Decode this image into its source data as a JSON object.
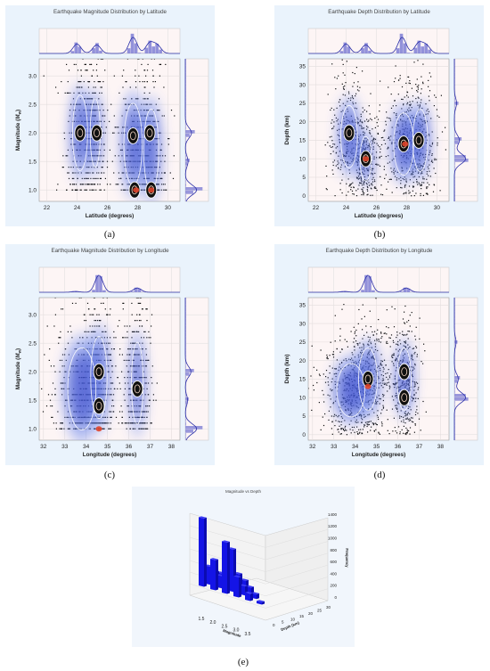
{
  "figure": {
    "captions": [
      "(a)",
      "(b)",
      "(c)",
      "(d)",
      "(e)"
    ]
  },
  "colors": {
    "panel_bg": "#eaf3fc",
    "plot_bg": "#fdf5f5",
    "points": "#111111",
    "kde_fill": "#3b4fcf",
    "kde_glow": "#6f8df2",
    "contour": "#ffffff",
    "hot_core": "#e0452b",
    "marginal": "#6d6fd0",
    "bar3d": "#1414e6"
  },
  "chart_data": [
    {
      "type": "scatter",
      "title": "Earthquake Magnitude Distribution by Latitude",
      "xlabel": "Latitude (degrees)",
      "ylabel": "Magnitude (M_w)",
      "ylabel_main": "Magnitude (",
      "ylabel_sub": "w",
      "xlim": [
        21.5,
        30.8
      ],
      "ylim": [
        0.8,
        3.3
      ],
      "xticks": [
        22,
        24,
        26,
        28,
        30
      ],
      "yticks": [
        1.0,
        1.5,
        2.0,
        2.5,
        3.0
      ],
      "ytick_labels": [
        "1.0",
        "1.5",
        "2.0",
        "2.5",
        "3.0"
      ],
      "clusters": [
        {
          "x": 24.2,
          "y": 2.0,
          "sx": 0.45,
          "sy": 0.55
        },
        {
          "x": 25.2,
          "y": 2.0,
          "sx": 0.3,
          "sy": 0.5
        },
        {
          "x": 27.7,
          "y": 1.8,
          "sx": 0.55,
          "sy": 0.6
        },
        {
          "x": 28.9,
          "y": 1.7,
          "sx": 0.45,
          "sy": 0.6
        }
      ],
      "quantized": true,
      "density_peaks": [
        [
          24.2,
          2.0
        ],
        [
          25.3,
          2.0
        ],
        [
          27.7,
          1.95
        ],
        [
          28.8,
          2.0
        ],
        [
          27.8,
          1.0
        ],
        [
          28.9,
          1.0
        ]
      ],
      "hot_spots": [
        [
          27.9,
          1.0
        ],
        [
          28.9,
          1.0
        ]
      ],
      "top_marginal": {
        "peaks": [
          [
            24.0,
            0.55
          ],
          [
            25.3,
            0.5
          ],
          [
            27.7,
            0.95
          ],
          [
            28.8,
            0.6
          ],
          [
            29.3,
            0.45
          ]
        ]
      },
      "right_marginal": {
        "peaks": [
          [
            1.0,
            1.0
          ],
          [
            2.0,
            0.55
          ],
          [
            1.5,
            0.25
          ]
        ]
      }
    },
    {
      "type": "scatter",
      "title": "Earthquake Depth Distribution by Latitude",
      "xlabel": "Latitude (degrees)",
      "ylabel": "Depth (km)",
      "xlim": [
        21.5,
        30.8
      ],
      "ylim": [
        -1.5,
        37
      ],
      "xticks": [
        22,
        24,
        26,
        28,
        30
      ],
      "yticks": [
        0,
        5,
        10,
        15,
        20,
        25,
        30,
        35
      ],
      "ytick_labels": [
        "0",
        "5",
        "10",
        "15",
        "20",
        "25",
        "30",
        "35"
      ],
      "clusters": [
        {
          "x": 24.2,
          "y": 16,
          "sx": 0.5,
          "sy": 7
        },
        {
          "x": 25.3,
          "y": 10,
          "sx": 0.35,
          "sy": 5
        },
        {
          "x": 27.8,
          "y": 14,
          "sx": 0.6,
          "sy": 7
        },
        {
          "x": 28.9,
          "y": 15,
          "sx": 0.45,
          "sy": 7
        }
      ],
      "quantized": false,
      "density_peaks": [
        [
          24.2,
          17
        ],
        [
          25.3,
          10
        ],
        [
          27.8,
          14
        ],
        [
          28.8,
          15
        ]
      ],
      "hot_spots": [
        [
          25.3,
          10
        ],
        [
          27.9,
          14
        ]
      ],
      "top_marginal": {
        "peaks": [
          [
            24.0,
            0.55
          ],
          [
            25.3,
            0.5
          ],
          [
            27.7,
            0.95
          ],
          [
            28.8,
            0.6
          ],
          [
            29.3,
            0.45
          ]
        ]
      },
      "right_marginal": {
        "peaks": [
          [
            10.0,
            1.0
          ],
          [
            15.0,
            0.45
          ],
          [
            25.0,
            0.2
          ]
        ]
      }
    },
    {
      "type": "scatter",
      "title": "Earthquake Magnitude Distribution by Longitude",
      "xlabel": "Longitude (degrees)",
      "ylabel": "Magnitude (M_w)",
      "ylabel_main": "Magnitude (",
      "ylabel_sub": "w",
      "xlim": [
        31.8,
        38.4
      ],
      "ylim": [
        0.8,
        3.3
      ],
      "xticks": [
        32,
        33,
        34,
        35,
        36,
        37,
        38
      ],
      "yticks": [
        1.0,
        1.5,
        2.0,
        2.5,
        3.0
      ],
      "ytick_labels": [
        "1.0",
        "1.5",
        "2.0",
        "2.5",
        "3.0"
      ],
      "clusters": [
        {
          "x": 34.6,
          "y": 1.9,
          "sx": 0.35,
          "sy": 0.6
        },
        {
          "x": 36.4,
          "y": 1.8,
          "sx": 0.25,
          "sy": 0.6
        },
        {
          "x": 33.8,
          "y": 1.7,
          "sx": 0.6,
          "sy": 0.6
        }
      ],
      "quantized": true,
      "density_peaks": [
        [
          34.6,
          2.0
        ],
        [
          34.6,
          1.4
        ],
        [
          36.4,
          1.7
        ]
      ],
      "hot_spots": [
        [
          34.6,
          1.0
        ]
      ],
      "top_marginal": {
        "peaks": [
          [
            34.6,
            1.0
          ],
          [
            36.4,
            0.25
          ],
          [
            33.5,
            0.05
          ]
        ]
      },
      "right_marginal": {
        "peaks": [
          [
            1.0,
            1.0
          ],
          [
            2.0,
            0.5
          ],
          [
            1.5,
            0.2
          ]
        ]
      }
    },
    {
      "type": "scatter",
      "title": "Earthquake Depth Distribution by Longitude",
      "xlabel": "Longitude (degrees)",
      "ylabel": "Depth (km)",
      "xlim": [
        31.8,
        38.4
      ],
      "ylim": [
        -1.5,
        37
      ],
      "xticks": [
        32,
        33,
        34,
        35,
        36,
        37,
        38
      ],
      "yticks": [
        0,
        5,
        10,
        15,
        20,
        25,
        30,
        35
      ],
      "ytick_labels": [
        "0",
        "5",
        "10",
        "15",
        "20",
        "25",
        "30",
        "35"
      ],
      "clusters": [
        {
          "x": 34.6,
          "y": 15,
          "sx": 0.4,
          "sy": 7
        },
        {
          "x": 36.3,
          "y": 15,
          "sx": 0.3,
          "sy": 7
        },
        {
          "x": 33.8,
          "y": 12,
          "sx": 0.6,
          "sy": 6
        }
      ],
      "quantized": false,
      "density_peaks": [
        [
          34.6,
          15
        ],
        [
          36.3,
          17
        ],
        [
          36.3,
          10
        ]
      ],
      "hot_spots": [
        [
          34.6,
          13
        ]
      ],
      "top_marginal": {
        "peaks": [
          [
            34.6,
            1.0
          ],
          [
            36.4,
            0.25
          ],
          [
            33.5,
            0.05
          ]
        ]
      },
      "right_marginal": {
        "peaks": [
          [
            10.0,
            1.0
          ],
          [
            15.0,
            0.35
          ],
          [
            25.0,
            0.15
          ]
        ]
      }
    },
    {
      "type": "bar3d",
      "title": "Magnitude vs Depth",
      "xlabel": "Magnitude",
      "ylabel": "Depth (km)",
      "zlabel": "Frequency",
      "xticks": [
        "1.5",
        "2.0",
        "2.5",
        "3.0",
        "3.5"
      ],
      "yticks": [
        "0",
        "5",
        "10",
        "15",
        "20",
        "25",
        "30"
      ],
      "zticks": [
        "0",
        "200",
        "400",
        "600",
        "800",
        "1000",
        "1200",
        "1400"
      ],
      "zlim": [
        0,
        1400
      ],
      "bars": [
        {
          "x": 1.0,
          "y": 0,
          "z": 1130
        },
        {
          "x": 1.0,
          "y": 5,
          "z": 300
        },
        {
          "x": 1.0,
          "y": 10,
          "z": 180
        },
        {
          "x": 1.0,
          "y": 15,
          "z": 120
        },
        {
          "x": 1.5,
          "y": 0,
          "z": 500
        },
        {
          "x": 1.5,
          "y": 5,
          "z": 200
        },
        {
          "x": 1.5,
          "y": 10,
          "z": 160
        },
        {
          "x": 2.0,
          "y": 0,
          "z": 850
        },
        {
          "x": 2.0,
          "y": 5,
          "z": 700
        },
        {
          "x": 2.0,
          "y": 10,
          "z": 260
        },
        {
          "x": 2.0,
          "y": 15,
          "z": 120
        },
        {
          "x": 2.5,
          "y": 0,
          "z": 330
        },
        {
          "x": 2.5,
          "y": 5,
          "z": 150
        },
        {
          "x": 2.5,
          "y": 10,
          "z": 100
        },
        {
          "x": 3.0,
          "y": 0,
          "z": 120
        },
        {
          "x": 3.0,
          "y": 5,
          "z": 80
        },
        {
          "x": 3.5,
          "y": 0,
          "z": 40
        }
      ]
    }
  ]
}
